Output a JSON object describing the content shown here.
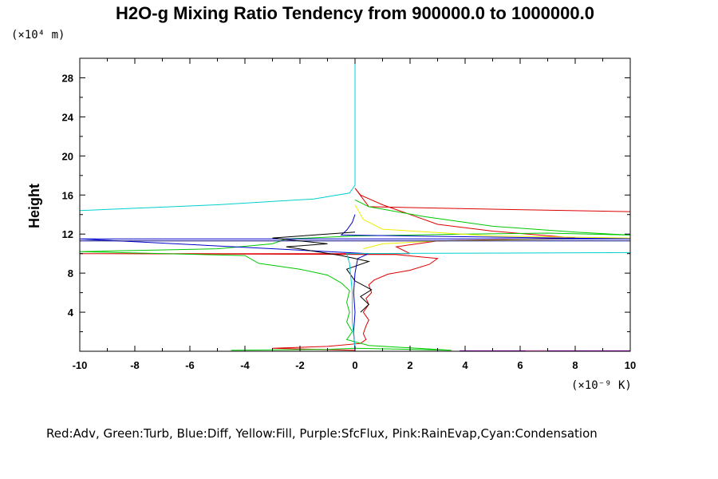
{
  "chart_data": {
    "type": "line",
    "title": "H2O-g Mixing Ratio Tendency from 900000.0 to 1000000.0",
    "ylabel": "Height",
    "y_unit": "(×10⁴ m)",
    "x_unit": "(×10⁻⁹ K)",
    "xlim": [
      -10,
      10
    ],
    "ylim": [
      0,
      30
    ],
    "xticks": [
      "-10",
      "-8",
      "-6",
      "-4",
      "-2",
      "0",
      "2",
      "4",
      "6",
      "8",
      "10"
    ],
    "yticks": [
      "4",
      "8",
      "12",
      "16",
      "20",
      "24",
      "28"
    ],
    "grid": false,
    "legend": "Red:Adv, Green:Turb, Blue:Diff, Yellow:Fill, Purple:SfcFlux, Pink:RainEvap,Cyan:Condensation",
    "colors": {
      "red": "#dd0000",
      "green": "#00c800",
      "blue": "#0000cc",
      "navy": "#000080",
      "yellow": "#eeee00",
      "cyan": "#00d0d0",
      "purple": "#a000c0",
      "pink": "#ff66cc",
      "black": "#000000"
    },
    "series": [
      {
        "color": "red",
        "points": [
          [
            0,
            0.1
          ],
          [
            -3,
            0.3
          ],
          [
            -1,
            0.5
          ],
          [
            0.2,
            0.8
          ],
          [
            0.4,
            1.2
          ],
          [
            0.3,
            1.8
          ],
          [
            0.4,
            2.6
          ],
          [
            0.5,
            3.2
          ],
          [
            0.3,
            4.0
          ],
          [
            0.5,
            4.8
          ],
          [
            0.4,
            5.4
          ],
          [
            0.6,
            6.0
          ],
          [
            0.5,
            6.8
          ],
          [
            0.7,
            7.3
          ],
          [
            1.2,
            7.9
          ],
          [
            2.0,
            8.3
          ],
          [
            2.7,
            8.9
          ],
          [
            3.0,
            9.5
          ],
          [
            1.5,
            9.9
          ],
          [
            -10,
            10.0
          ],
          [
            2.0,
            10.0
          ],
          [
            1.5,
            10.7
          ],
          [
            3.0,
            11.3
          ],
          [
            8.0,
            11.6
          ],
          [
            5.0,
            12.3
          ],
          [
            3.0,
            13.0
          ],
          [
            2.0,
            14.0
          ],
          [
            1.0,
            15.0
          ],
          [
            0.2,
            16.0
          ],
          [
            0,
            16.7
          ],
          [
            0.5,
            14.8
          ],
          [
            4.0,
            14.6
          ],
          [
            10,
            14.3
          ]
        ]
      },
      {
        "color": "green",
        "points": [
          [
            -4.5,
            0.1
          ],
          [
            -1,
            0.2
          ],
          [
            0,
            0.3
          ],
          [
            2.0,
            0.2
          ],
          [
            3.5,
            0.1
          ],
          [
            0.5,
            0.6
          ],
          [
            -0.3,
            1.2
          ],
          [
            -0.1,
            2.0
          ],
          [
            -0.3,
            3.0
          ],
          [
            -0.2,
            4.0
          ],
          [
            -0.3,
            5.0
          ],
          [
            -0.2,
            6.2
          ],
          [
            -0.5,
            7.0
          ],
          [
            -1.0,
            7.8
          ],
          [
            -2.0,
            8.4
          ],
          [
            -3.5,
            9.0
          ],
          [
            -4.0,
            9.8
          ],
          [
            -10,
            10.2
          ],
          [
            -5.0,
            10.5
          ],
          [
            -3.0,
            11.0
          ],
          [
            -2.5,
            11.5
          ],
          [
            0,
            11.8
          ],
          [
            4.0,
            12.0
          ],
          [
            7.0,
            12.1
          ],
          [
            10,
            11.9
          ],
          [
            8.0,
            12.2
          ],
          [
            5.0,
            12.8
          ],
          [
            2.5,
            13.8
          ],
          [
            0.5,
            14.8
          ],
          [
            0,
            15.5
          ]
        ]
      },
      {
        "color": "yellow",
        "points": [
          [
            0,
            15.0
          ],
          [
            0.3,
            13.5
          ],
          [
            1.0,
            12.5
          ],
          [
            5.0,
            11.8
          ],
          [
            10,
            11.6
          ],
          [
            3.0,
            11.3
          ],
          [
            1.0,
            11.0
          ],
          [
            0.3,
            10.5
          ]
        ]
      },
      {
        "color": "blue",
        "points": [
          [
            0,
            0.1
          ],
          [
            -0.05,
            2.0
          ],
          [
            0,
            4.0
          ],
          [
            -0.05,
            6.0
          ],
          [
            0,
            8.0
          ],
          [
            0.1,
            9.5
          ],
          [
            0.5,
            10.0
          ],
          [
            -10,
            11.5
          ],
          [
            10,
            11.5
          ],
          [
            -0.5,
            11.9
          ],
          [
            -0.3,
            12.4
          ],
          [
            -0.1,
            13.2
          ],
          [
            0,
            14.0
          ]
        ]
      },
      {
        "color": "navy",
        "points": [
          [
            -10,
            11.3
          ],
          [
            10,
            11.3
          ]
        ]
      },
      {
        "color": "black",
        "points": [
          [
            0.2,
            4.0
          ],
          [
            0.5,
            4.8
          ],
          [
            0.2,
            5.6
          ],
          [
            0.6,
            6.3
          ],
          [
            0.0,
            7.2
          ],
          [
            -0.3,
            8.4
          ],
          [
            0.5,
            9.2
          ],
          [
            -0.5,
            9.8
          ],
          [
            -2.5,
            10.7
          ],
          [
            -1.0,
            11.0
          ],
          [
            -3.0,
            11.6
          ],
          [
            -1.5,
            11.9
          ],
          [
            0,
            12.2
          ]
        ]
      },
      {
        "color": "cyan",
        "points": [
          [
            0,
            30
          ],
          [
            0,
            17
          ],
          [
            -0.2,
            16.2
          ],
          [
            -1.5,
            15.6
          ],
          [
            -5.0,
            15.0
          ],
          [
            -10,
            14.4
          ]
        ]
      },
      {
        "color": "cyan",
        "points": [
          [
            0,
            0.3
          ],
          [
            -0.1,
            3.0
          ],
          [
            -0.1,
            6.0
          ],
          [
            -0.2,
            9.0
          ],
          [
            -0.3,
            10.0
          ],
          [
            10,
            10.1
          ]
        ]
      },
      {
        "color": "purple",
        "points": [
          [
            3.8,
            0.05
          ],
          [
            10,
            0.05
          ]
        ]
      },
      {
        "color": "pink",
        "points": [
          [
            6.2,
            0.05
          ],
          [
            7.0,
            0.05
          ]
        ]
      }
    ]
  }
}
